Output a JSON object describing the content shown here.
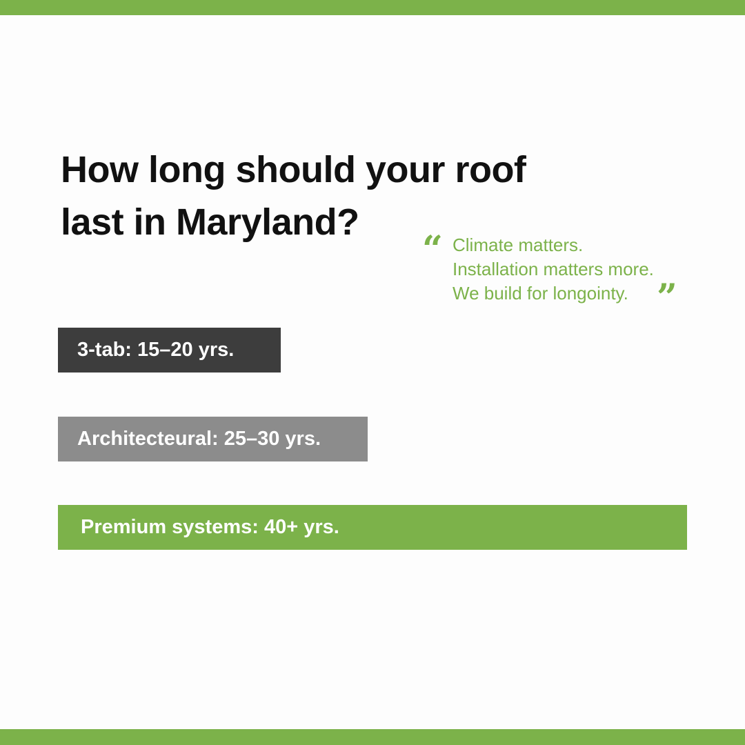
{
  "header": {
    "title_lines": [
      "How long should your roof",
      "last in Maryland?"
    ]
  },
  "quote": {
    "open_mark": "“",
    "lines": [
      "Climate matters.",
      "Installation matters more.",
      "We build for longointy."
    ],
    "close_mark": "”"
  },
  "items": [
    "3-tab: 15–20 yrs.",
    "Architecteural: 25–30 yrs.",
    "Premium systems: 40+ yrs."
  ]
}
